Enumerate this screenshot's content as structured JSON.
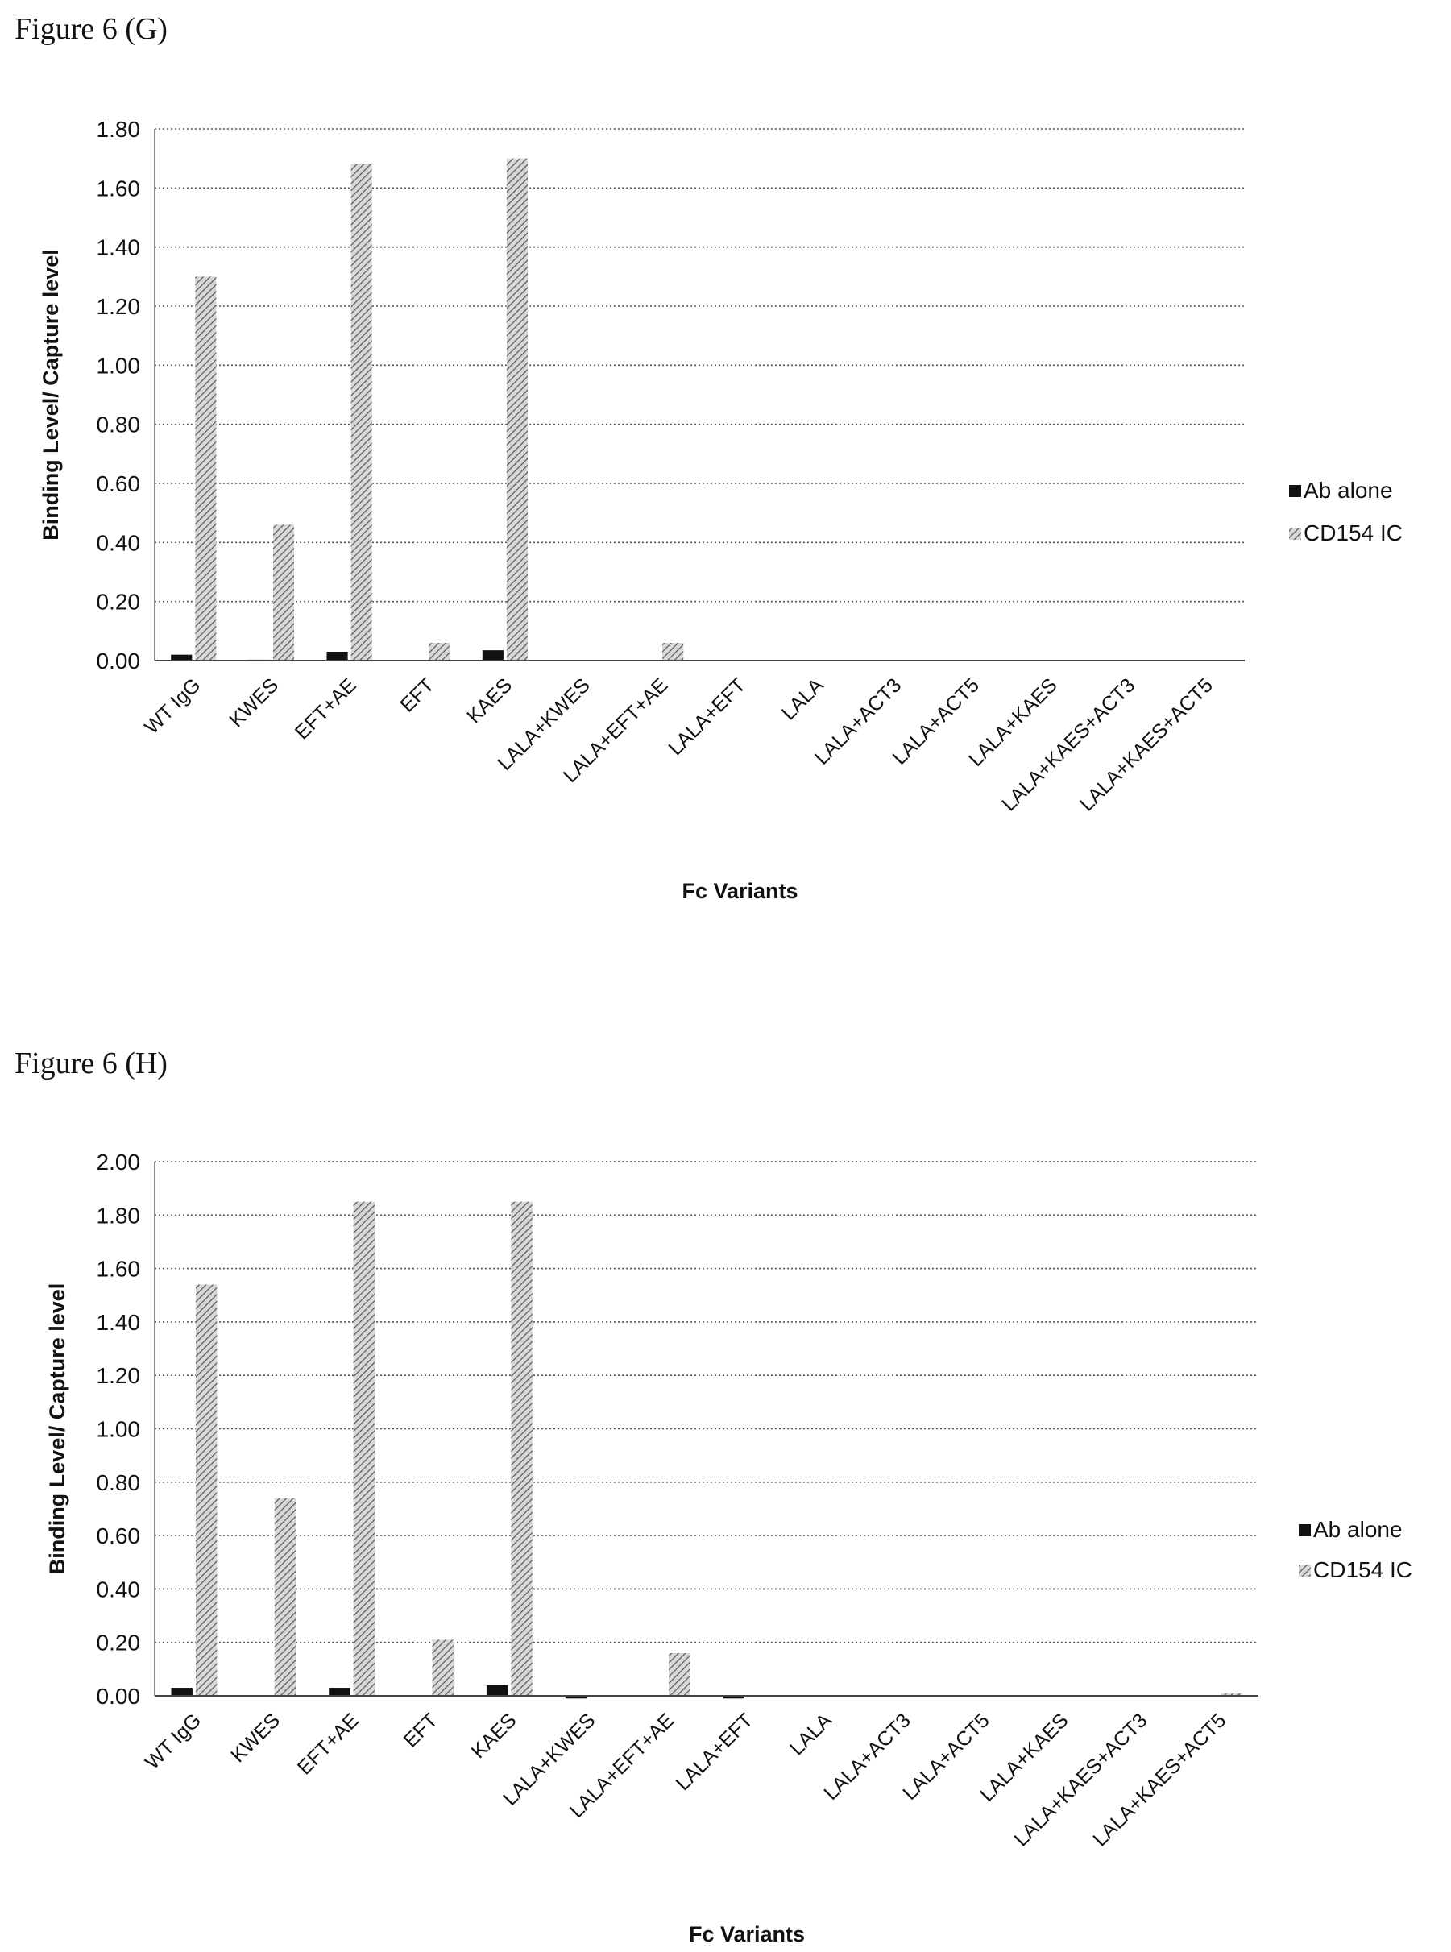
{
  "figures": [
    {
      "id": "g",
      "label": "Figure 6 (G)"
    },
    {
      "id": "h",
      "label": "Figure 6 (H)"
    }
  ],
  "chart_data": [
    {
      "id": "g",
      "type": "bar",
      "xlabel": "Fc Variants",
      "ylabel": "Binding Level/ Capture level",
      "ylim": [
        0,
        1.8
      ],
      "yticks": [
        "0.00",
        "0.20",
        "0.40",
        "0.60",
        "0.80",
        "1.00",
        "1.20",
        "1.40",
        "1.60",
        "1.80"
      ],
      "categories": [
        "WT IgG",
        "KWES",
        "EFT+AE",
        "EFT",
        "KAES",
        "LALA+KWES",
        "LALA+EFT+AE",
        "LALA+EFT",
        "LALA",
        "LALA+ACT3",
        "LALA+ACT5",
        "LALA+KAES",
        "LALA+KAES+ACT3",
        "LALA+KAES+ACT5"
      ],
      "series": [
        {
          "name": "Ab alone",
          "color": "#111111",
          "pattern": "solid",
          "values": [
            0.02,
            0.003,
            0.03,
            0.0,
            0.035,
            0.0,
            0.0,
            0.0,
            0.0,
            0.0,
            0.0,
            0.0,
            0.0,
            0.0
          ]
        },
        {
          "name": "CD154 IC",
          "color": "#888888",
          "pattern": "hatch",
          "values": [
            1.3,
            0.46,
            1.68,
            0.06,
            1.7,
            0.0,
            0.06,
            0.0,
            0.0,
            0.0,
            0.0,
            0.0,
            0.0,
            0.0
          ]
        }
      ],
      "grid": true,
      "legend": "right"
    },
    {
      "id": "h",
      "type": "bar",
      "xlabel": "Fc Variants",
      "ylabel": "Binding Level/ Capture level",
      "ylim": [
        0,
        2.0
      ],
      "yticks": [
        "0.00",
        "0.20",
        "0.40",
        "0.60",
        "0.80",
        "1.00",
        "1.20",
        "1.40",
        "1.60",
        "1.80",
        "2.00"
      ],
      "categories": [
        "WT IgG",
        "KWES",
        "EFT+AE",
        "EFT",
        "KAES",
        "LALA+KWES",
        "LALA+EFT+AE",
        "LALA+EFT",
        "LALA",
        "LALA+ACT3",
        "LALA+ACT5",
        "LALA+KAES",
        "LALA+KAES+ACT3",
        "LALA+KAES+ACT5"
      ],
      "series": [
        {
          "name": "Ab alone",
          "color": "#111111",
          "pattern": "solid",
          "values": [
            0.03,
            0.0,
            0.03,
            0.0,
            0.04,
            -0.01,
            0.0,
            -0.01,
            0.0,
            0.0,
            0.0,
            0.0,
            0.0,
            0.0
          ]
        },
        {
          "name": "CD154 IC",
          "color": "#888888",
          "pattern": "hatch",
          "values": [
            1.54,
            0.74,
            1.85,
            0.21,
            1.85,
            0.0,
            0.16,
            0.0,
            0.0,
            0.0,
            0.0,
            0.0,
            0.0,
            0.01
          ]
        }
      ],
      "grid": true,
      "legend": "right"
    }
  ]
}
